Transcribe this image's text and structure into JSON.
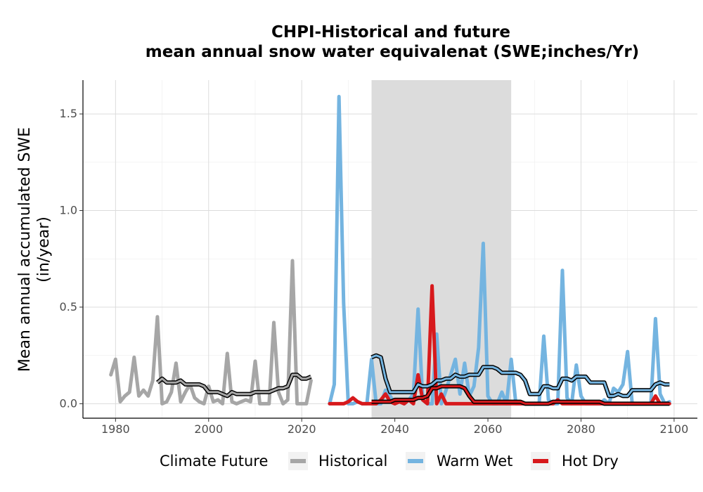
{
  "chart_data": {
    "type": "line",
    "title": [
      "CHPI-Historical and future",
      "mean annual snow water equivalenat (SWE;inches/Yr)"
    ],
    "xlabel": "",
    "ylabel": [
      "Mean annual accumulated SWE",
      "(in/year)"
    ],
    "xlim": [
      1973,
      2105
    ],
    "ylim": [
      -0.075,
      1.675
    ],
    "xticks": [
      1980,
      2000,
      2020,
      2040,
      2060,
      2080,
      2100
    ],
    "yticks": [
      0.0,
      0.5,
      1.0,
      1.5
    ],
    "ytick_labels": [
      "0.0",
      "0.5",
      "1.0",
      "1.5"
    ],
    "grid": true,
    "shaded_period": [
      2035,
      2065
    ],
    "legend": {
      "title": "Climate Future",
      "position": "bottom",
      "entries": [
        "Historical",
        "Warm Wet",
        "Hot Dry"
      ]
    },
    "colors": {
      "Historical": "#a6a6a6",
      "Warm Wet": "#74b4e0",
      "Hot Dry": "#d7191c",
      "smoothed": "#000000",
      "shade": "#dcdcdc"
    },
    "series": [
      {
        "name": "Historical",
        "x": [
          1979,
          1980,
          1981,
          1982,
          1983,
          1984,
          1985,
          1986,
          1987,
          1988,
          1989,
          1990,
          1991,
          1992,
          1993,
          1994,
          1995,
          1996,
          1997,
          1998,
          1999,
          2000,
          2001,
          2002,
          2003,
          2004,
          2005,
          2006,
          2007,
          2008,
          2009,
          2010,
          2011,
          2012,
          2013,
          2014,
          2015,
          2016,
          2017,
          2018,
          2019,
          2020,
          2021,
          2022
        ],
        "values": [
          0.15,
          0.23,
          0.01,
          0.04,
          0.06,
          0.24,
          0.04,
          0.07,
          0.04,
          0.12,
          0.45,
          0.0,
          0.01,
          0.06,
          0.21,
          0.01,
          0.06,
          0.1,
          0.03,
          0.01,
          0.0,
          0.09,
          0.01,
          0.02,
          0.0,
          0.26,
          0.01,
          0.0,
          0.01,
          0.02,
          0.01,
          0.22,
          0.0,
          0.0,
          0.0,
          0.42,
          0.06,
          0.0,
          0.02,
          0.74,
          0.0,
          0.0,
          0.0,
          0.12
        ]
      },
      {
        "name": "Warm Wet",
        "x": [
          2026,
          2027,
          2028,
          2029,
          2030,
          2031,
          2032,
          2033,
          2034,
          2035,
          2036,
          2037,
          2038,
          2039,
          2040,
          2041,
          2042,
          2043,
          2044,
          2045,
          2046,
          2047,
          2048,
          2049,
          2050,
          2051,
          2052,
          2053,
          2054,
          2055,
          2056,
          2057,
          2058,
          2059,
          2060,
          2061,
          2062,
          2063,
          2064,
          2065,
          2066,
          2067,
          2068,
          2069,
          2070,
          2071,
          2072,
          2073,
          2074,
          2075,
          2076,
          2077,
          2078,
          2079,
          2080,
          2081,
          2082,
          2083,
          2084,
          2085,
          2086,
          2087,
          2088,
          2089,
          2090,
          2091,
          2092,
          2093,
          2094,
          2095,
          2096,
          2097,
          2098,
          2099
        ],
        "values": [
          0.0,
          0.1,
          1.59,
          0.52,
          0.0,
          0.0,
          0.01,
          0.0,
          0.0,
          0.23,
          0.0,
          0.0,
          0.07,
          0.04,
          0.0,
          0.02,
          0.0,
          0.02,
          0.05,
          0.49,
          0.02,
          0.0,
          0.0,
          0.36,
          0.0,
          0.07,
          0.15,
          0.23,
          0.05,
          0.21,
          0.04,
          0.09,
          0.29,
          0.83,
          0.04,
          0.0,
          0.0,
          0.06,
          0.0,
          0.23,
          0.0,
          0.0,
          0.0,
          0.0,
          0.0,
          0.0,
          0.35,
          0.02,
          0.0,
          0.0,
          0.69,
          0.03,
          0.0,
          0.2,
          0.04,
          0.0,
          0.0,
          0.0,
          0.0,
          0.02,
          0.0,
          0.08,
          0.06,
          0.1,
          0.27,
          0.0,
          0.0,
          0.0,
          0.0,
          0.0,
          0.44,
          0.05,
          0.0,
          0.01
        ]
      },
      {
        "name": "Hot Dry",
        "x": [
          2026,
          2027,
          2028,
          2029,
          2030,
          2031,
          2032,
          2033,
          2034,
          2035,
          2036,
          2037,
          2038,
          2039,
          2040,
          2041,
          2042,
          2043,
          2044,
          2045,
          2046,
          2047,
          2048,
          2049,
          2050,
          2051,
          2052,
          2053,
          2054,
          2055,
          2056,
          2057,
          2058,
          2059,
          2060,
          2061,
          2062,
          2063,
          2064,
          2065,
          2066,
          2067,
          2068,
          2069,
          2070,
          2071,
          2072,
          2073,
          2074,
          2075,
          2076,
          2077,
          2078,
          2079,
          2080,
          2081,
          2082,
          2083,
          2084,
          2085,
          2086,
          2087,
          2088,
          2089,
          2090,
          2091,
          2092,
          2093,
          2094,
          2095,
          2096,
          2097,
          2098,
          2099
        ],
        "values": [
          0.0,
          0.0,
          0.0,
          0.0,
          0.01,
          0.03,
          0.01,
          0.0,
          0.0,
          0.0,
          0.0,
          0.02,
          0.05,
          0.01,
          0.0,
          0.01,
          0.0,
          0.02,
          0.0,
          0.15,
          0.02,
          0.0,
          0.61,
          0.0,
          0.05,
          0.0,
          0.0,
          0.0,
          0.0,
          0.0,
          0.0,
          0.0,
          0.0,
          0.0,
          0.0,
          0.0,
          0.0,
          0.0,
          0.0,
          0.0,
          0.0,
          0.0,
          0.0,
          0.0,
          0.0,
          0.0,
          0.0,
          0.0,
          0.0,
          0.02,
          0.0,
          0.0,
          0.0,
          0.0,
          0.0,
          0.0,
          0.0,
          0.0,
          0.0,
          0.0,
          0.0,
          0.0,
          0.0,
          0.0,
          0.0,
          0.0,
          0.0,
          0.0,
          0.0,
          0.0,
          0.04,
          0.0,
          0.0,
          0.0
        ]
      },
      {
        "name": "Historical 10-yr smooth",
        "smoothed": true,
        "x": [
          1989,
          1990,
          1991,
          1992,
          1993,
          1994,
          1995,
          1996,
          1997,
          1998,
          1999,
          2000,
          2001,
          2002,
          2003,
          2004,
          2005,
          2006,
          2007,
          2008,
          2009,
          2010,
          2011,
          2012,
          2013,
          2014,
          2015,
          2016,
          2017,
          2018,
          2019,
          2020,
          2021,
          2022
        ],
        "values": [
          0.11,
          0.13,
          0.11,
          0.11,
          0.11,
          0.12,
          0.1,
          0.1,
          0.1,
          0.1,
          0.09,
          0.06,
          0.06,
          0.06,
          0.05,
          0.04,
          0.06,
          0.05,
          0.05,
          0.05,
          0.05,
          0.06,
          0.06,
          0.06,
          0.06,
          0.07,
          0.08,
          0.08,
          0.09,
          0.15,
          0.15,
          0.13,
          0.13,
          0.14
        ]
      },
      {
        "name": "Warm Wet 10-yr smooth",
        "smoothed": true,
        "x": [
          2035,
          2036,
          2037,
          2038,
          2039,
          2040,
          2041,
          2042,
          2043,
          2044,
          2045,
          2046,
          2047,
          2048,
          2049,
          2050,
          2051,
          2052,
          2053,
          2054,
          2055,
          2056,
          2057,
          2058,
          2059,
          2060,
          2061,
          2062,
          2063,
          2064,
          2065,
          2066,
          2067,
          2068,
          2069,
          2070,
          2071,
          2072,
          2073,
          2074,
          2075,
          2076,
          2077,
          2078,
          2079,
          2080,
          2081,
          2082,
          2083,
          2084,
          2085,
          2086,
          2087,
          2088,
          2089,
          2090,
          2091,
          2092,
          2093,
          2094,
          2095,
          2096,
          2097,
          2098,
          2099
        ],
        "values": [
          0.24,
          0.25,
          0.24,
          0.13,
          0.06,
          0.06,
          0.06,
          0.06,
          0.06,
          0.06,
          0.1,
          0.09,
          0.09,
          0.1,
          0.12,
          0.12,
          0.13,
          0.13,
          0.15,
          0.14,
          0.14,
          0.15,
          0.15,
          0.15,
          0.19,
          0.19,
          0.19,
          0.18,
          0.16,
          0.16,
          0.16,
          0.16,
          0.15,
          0.12,
          0.05,
          0.05,
          0.05,
          0.09,
          0.09,
          0.08,
          0.08,
          0.13,
          0.13,
          0.12,
          0.14,
          0.14,
          0.14,
          0.11,
          0.11,
          0.11,
          0.11,
          0.04,
          0.04,
          0.05,
          0.04,
          0.04,
          0.07,
          0.07,
          0.07,
          0.07,
          0.07,
          0.1,
          0.11,
          0.1,
          0.1
        ]
      },
      {
        "name": "Hot Dry 10-yr smooth",
        "smoothed": true,
        "x": [
          2035,
          2036,
          2037,
          2038,
          2039,
          2040,
          2041,
          2042,
          2043,
          2044,
          2045,
          2046,
          2047,
          2048,
          2049,
          2050,
          2051,
          2052,
          2053,
          2054,
          2055,
          2056,
          2057,
          2058,
          2059,
          2060,
          2061,
          2062,
          2063,
          2064,
          2065,
          2066,
          2067,
          2068,
          2069,
          2070,
          2071,
          2072,
          2073,
          2074,
          2075,
          2076,
          2077,
          2078,
          2079,
          2080,
          2081,
          2082,
          2083,
          2084,
          2085,
          2086,
          2087,
          2088,
          2089,
          2090,
          2091,
          2092,
          2093,
          2094,
          2095,
          2096,
          2097,
          2098,
          2099
        ],
        "values": [
          0.01,
          0.01,
          0.01,
          0.01,
          0.01,
          0.02,
          0.02,
          0.02,
          0.02,
          0.02,
          0.03,
          0.03,
          0.04,
          0.08,
          0.08,
          0.09,
          0.09,
          0.09,
          0.09,
          0.09,
          0.08,
          0.04,
          0.01,
          0.01,
          0.01,
          0.01,
          0.01,
          0.01,
          0.01,
          0.01,
          0.01,
          0.01,
          0.01,
          0.0,
          0.0,
          0.0,
          0.0,
          0.0,
          0.0,
          0.01,
          0.01,
          0.01,
          0.01,
          0.01,
          0.01,
          0.01,
          0.01,
          0.01,
          0.01,
          0.01,
          0.0,
          0.0,
          0.0,
          0.0,
          0.0,
          0.0,
          0.0,
          0.0,
          0.0,
          0.0,
          0.0,
          0.0,
          0.0,
          0.0,
          0.0
        ]
      }
    ]
  }
}
